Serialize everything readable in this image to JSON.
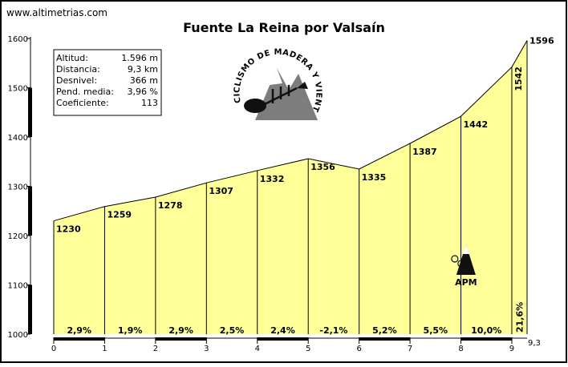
{
  "site": "www.altimetrias.com",
  "chart_data": {
    "type": "area",
    "title": "Fuente La Reina por Valsaín",
    "x": [
      0,
      1,
      2,
      3,
      4,
      5,
      6,
      7,
      8,
      9,
      9.3
    ],
    "y": [
      1230,
      1259,
      1278,
      1307,
      1332,
      1356,
      1335,
      1387,
      1442,
      1542,
      1596
    ],
    "point_labels": [
      "1230",
      "1259",
      "1278",
      "1307",
      "1332",
      "1356",
      "1335",
      "1387",
      "1442",
      "1542",
      "1596"
    ],
    "gradients": [
      "2,9%",
      "1,9%",
      "2,9%",
      "2,5%",
      "2,4%",
      "-2,1%",
      "5,2%",
      "5,5%",
      "10,0%",
      "21,6%"
    ],
    "x_ticks": [
      "0",
      "1",
      "2",
      "3",
      "4",
      "5",
      "6",
      "7",
      "8",
      "9"
    ],
    "x_end_label": "9,3",
    "y_ticks": [
      "1000",
      "1100",
      "1200",
      "1300",
      "1400",
      "1500",
      "1600"
    ],
    "xlim": [
      0,
      9.3
    ],
    "ylim": [
      1000,
      1600
    ],
    "fill_color": "#ffff99",
    "grid": false
  },
  "info_box": {
    "rows": [
      {
        "label": "Altitud:",
        "value": "1.596 m"
      },
      {
        "label": "Distancia:",
        "value": "9,3 km"
      },
      {
        "label": "Desnivel:",
        "value": "366 m"
      },
      {
        "label": "Pend. media:",
        "value": "3,96 %"
      },
      {
        "label": "Coeficiente:",
        "value": "113"
      }
    ]
  },
  "logo": {
    "text": "CICLISMO DE MADERA Y VIENTO",
    "icon": "fish-skeleton-mountain-logo"
  },
  "marker": {
    "label": "APM",
    "icon": "mountain-cyclist-icon",
    "x": 8.1
  }
}
